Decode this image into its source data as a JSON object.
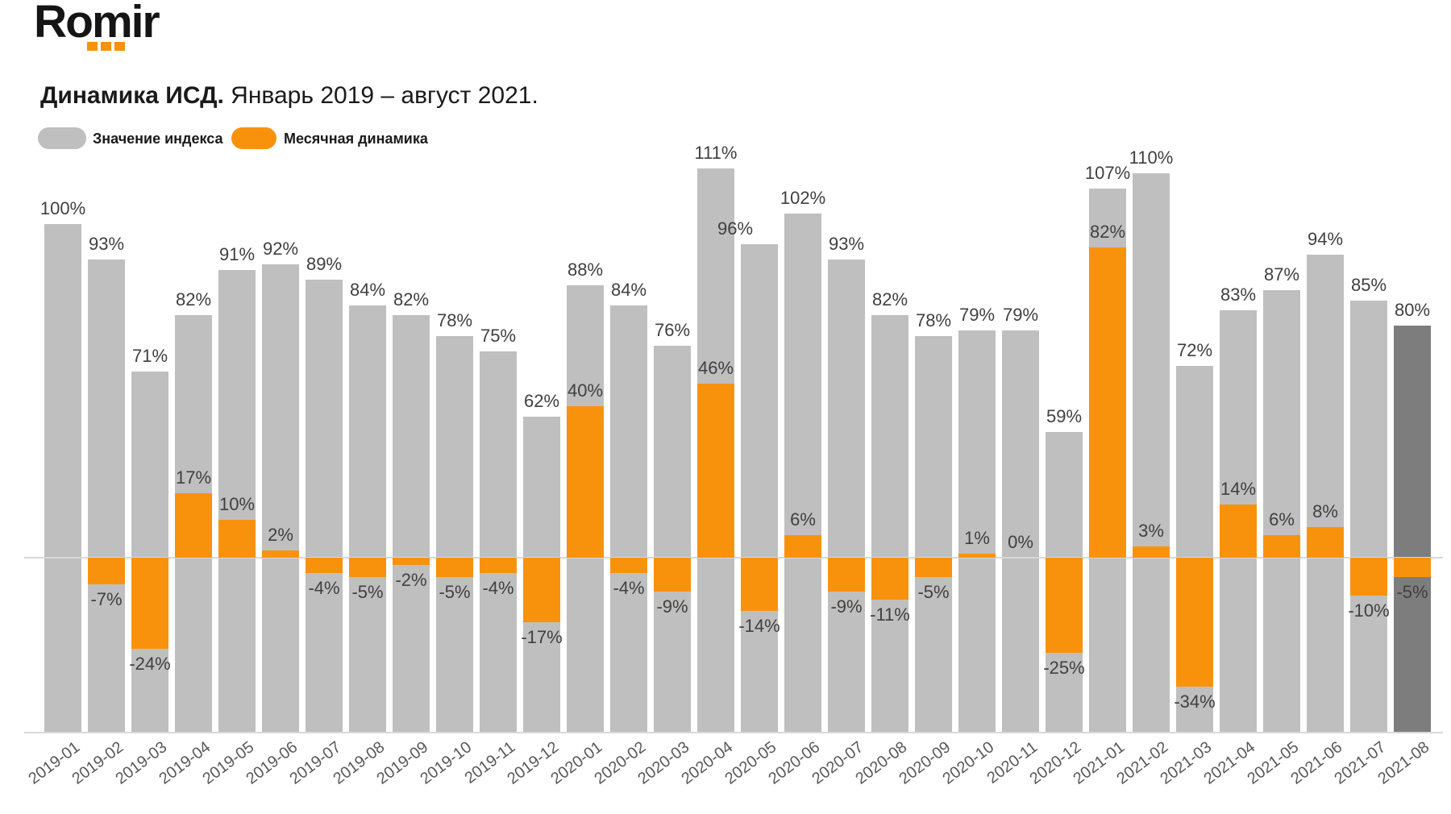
{
  "logo": {
    "text": "Romir",
    "accent_color": "#F8920D",
    "dots_count": 3
  },
  "header": {
    "title_bold": "Динамика ИСД.",
    "title_rest": " Январь 2019 – август 2021."
  },
  "legend": {
    "items": [
      {
        "label": "Значение индекса",
        "color": "#BFBFBF"
      },
      {
        "label": "Месячная динамика",
        "color": "#F8920D"
      }
    ]
  },
  "chart_data": {
    "type": "bar",
    "title": "Динамика ИСД. Январь 2019 – август 2021.",
    "unit": "%",
    "categories": [
      "2019-01",
      "2019-02",
      "2019-03",
      "2019-04",
      "2019-05",
      "2019-06",
      "2019-07",
      "2019-08",
      "2019-09",
      "2019-10",
      "2019-11",
      "2019-12",
      "2020-01",
      "2020-02",
      "2020-03",
      "2020-04",
      "2020-05",
      "2020-06",
      "2020-07",
      "2020-08",
      "2020-09",
      "2020-10",
      "2020-11",
      "2020-12",
      "2021-01",
      "2021-02",
      "2021-03",
      "2021-04",
      "2021-05",
      "2021-06",
      "2021-07",
      "2021-08"
    ],
    "series": [
      {
        "name": "Значение индекса",
        "role": "index-value",
        "color": "#BFBFBF",
        "values": [
          100,
          93,
          71,
          82,
          91,
          92,
          89,
          84,
          82,
          78,
          75,
          62,
          88,
          84,
          76,
          111,
          96,
          102,
          93,
          82,
          78,
          79,
          79,
          59,
          107,
          110,
          72,
          83,
          87,
          94,
          85,
          80
        ]
      },
      {
        "name": "Месячная динамика",
        "role": "monthly-dynamics",
        "color": "#F8920D",
        "values": [
          null,
          -7,
          -24,
          17,
          10,
          2,
          -4,
          -5,
          -2,
          -5,
          -4,
          -17,
          40,
          -4,
          -9,
          46,
          -14,
          6,
          -9,
          -11,
          -5,
          1,
          0,
          -25,
          82,
          3,
          -34,
          14,
          6,
          8,
          -10,
          -5
        ]
      }
    ],
    "highlight": {
      "category": "2021-08",
      "bar_color": "#7D7D7D"
    },
    "value_label_format": "{v}%",
    "layout": {
      "grid": false,
      "legend_position": "top-left",
      "xlabel_rotation_deg": -37,
      "baseline_for_dynamics": 0,
      "label_dx_overrides": {
        "16": -30
      }
    }
  }
}
